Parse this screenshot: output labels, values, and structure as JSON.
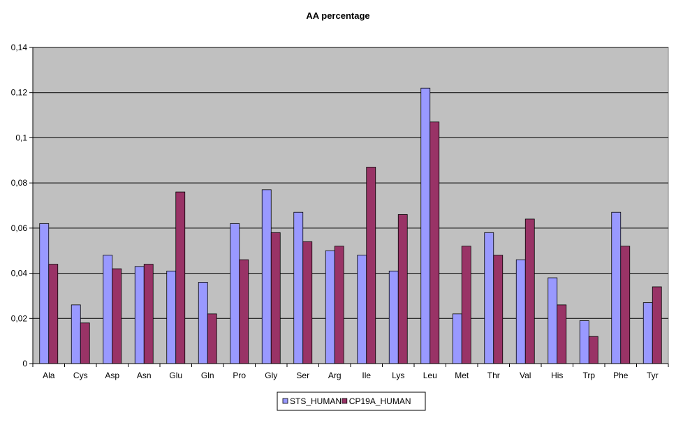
{
  "chart_data": {
    "type": "bar",
    "title": "AA percentage",
    "categories": [
      "Ala",
      "Cys",
      "Asp",
      "Asn",
      "Glu",
      "Gln",
      "Pro",
      "Gly",
      "Ser",
      "Arg",
      "Ile",
      "Lys",
      "Leu",
      "Met",
      "Thr",
      "Val",
      "His",
      "Trp",
      "Phe",
      "Tyr"
    ],
    "series": [
      {
        "name": "STS_HUMAN",
        "color": "#9999ff",
        "values": [
          0.062,
          0.026,
          0.048,
          0.043,
          0.041,
          0.036,
          0.062,
          0.077,
          0.067,
          0.05,
          0.048,
          0.041,
          0.122,
          0.022,
          0.058,
          0.046,
          0.038,
          0.019,
          0.067,
          0.027
        ]
      },
      {
        "name": "CP19A_HUMAN",
        "color": "#993366",
        "values": [
          0.044,
          0.018,
          0.042,
          0.044,
          0.076,
          0.022,
          0.046,
          0.058,
          0.054,
          0.052,
          0.087,
          0.066,
          0.107,
          0.052,
          0.048,
          0.064,
          0.026,
          0.012,
          0.052,
          0.034
        ]
      }
    ],
    "ylim": [
      0,
      0.14
    ],
    "yticks": [
      "0",
      "0,02",
      "0,04",
      "0,06",
      "0,08",
      "0,1",
      "0,12",
      "0,14"
    ],
    "ytick_values": [
      0,
      0.02,
      0.04,
      0.06,
      0.08,
      0.1,
      0.12,
      0.14
    ],
    "grid": true,
    "legend_position": "bottom-center",
    "plot_background": "#c0c0c0"
  }
}
